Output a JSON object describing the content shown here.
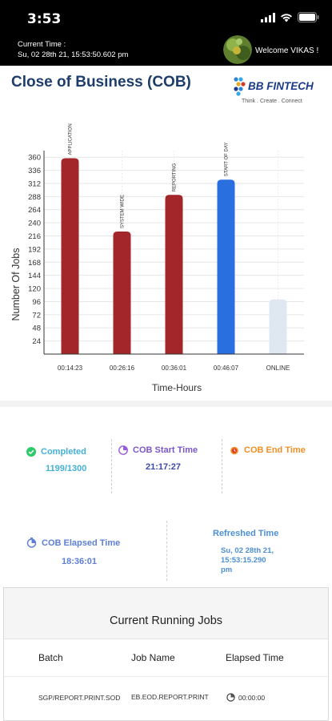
{
  "status_bar": {
    "time": "3:53"
  },
  "header": {
    "current_time_label": "Current Time :",
    "current_time_value": "Su, 02 28th 21, 15:53:50.602 pm",
    "welcome": "Welcome VIKAS !"
  },
  "page": {
    "title": "Close of Business (COB)"
  },
  "logo": {
    "brand": "BB FINTECH",
    "tagline": "Think . Create . Connect"
  },
  "chart_data": {
    "type": "bar",
    "xlabel": "Time-Hours",
    "ylabel": "Number Of Jobs",
    "yticks": [
      24,
      48,
      72,
      96,
      120,
      144,
      168,
      192,
      216,
      240,
      264,
      288,
      312,
      336,
      360
    ],
    "ylim": [
      0,
      372
    ],
    "grid": true,
    "categories": [
      "00:14:23",
      "00:26:16",
      "00:36:01",
      "00:46:07",
      "ONLINE"
    ],
    "bar_labels": [
      "APPLICATION",
      "SYSTEM WIDE",
      "REPORTING",
      "START OF DAY",
      ""
    ],
    "values": [
      358,
      224,
      291,
      319,
      100
    ],
    "colors": [
      "#a3262a",
      "#a3262a",
      "#a3262a",
      "#2a6fe0",
      "#dfe7f1"
    ]
  },
  "stats": {
    "completed": {
      "label": "Completed",
      "value": "1199/1300",
      "color": "#45b0d5"
    },
    "cob_start": {
      "label": "COB Start Time",
      "value": "21:17:27",
      "color": "#7b56c9"
    },
    "cob_end": {
      "label": "COB End Time",
      "value": "",
      "color": "#f08f26"
    },
    "cob_elapsed": {
      "label": "COB Elapsed Time",
      "value": "18:36:01",
      "color": "#5d7fd6"
    },
    "refreshed": {
      "label": "Refreshed Time",
      "value_line1": "Su, 02 28th 21,",
      "value_line2": "15:53:15.290",
      "value_line3": "pm",
      "color": "#4d8fd6"
    }
  },
  "jobs": {
    "title": "Current Running Jobs",
    "columns": [
      "Batch",
      "Job Name",
      "Elapsed Time"
    ],
    "rows": [
      {
        "batch": "SGP/REPORT.PRINT.SOD",
        "job_name": "EB.EOD.REPORT.PRINT",
        "elapsed": "00:00:00"
      }
    ]
  }
}
